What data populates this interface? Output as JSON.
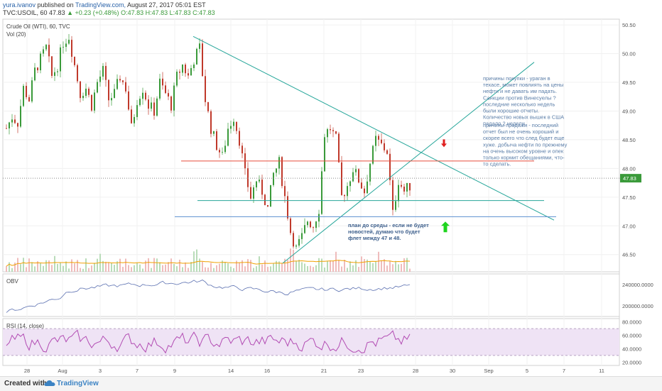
{
  "header": {
    "author": "yura.ivanov",
    "published_text": "published on",
    "site": "TradingView.com,",
    "date": "August 27, 2017 05:01 EST",
    "ticker_line": "TVC:USOIL, 60",
    "last_price": "47.83",
    "change": "▲ +0.23 (+0.48%)",
    "ohlc": "O:47.83 H:47.83 L:47.83 C:47.83"
  },
  "panes": {
    "main_title": "Crude Oil (WTI), 60, TVC",
    "volume_label": "Vol (20)",
    "obv_label": "OBV",
    "rsi_label": "RSI (14, close)"
  },
  "annotations": {
    "buy_reasons": [
      "причины покупки - ураган в",
      "техасе, может  повлиять на цены",
      "нефти и не давать им падать.",
      "Санкции против Винесуелы ?",
      "последние несколько недель",
      "были хорошие отчеты.",
      "Количество новых вышек в США",
      "падало 2 недели."
    ],
    "sell_reasons": [
      "причины продажи - последний",
      "отчет был не очень хороший и",
      "скорее всего что след будет еще",
      "хуже. добыча нефти по прежнему",
      "на очень высоком уровне и опек",
      "только кормит обещаниями, что-",
      "то сделать."
    ],
    "plan": [
      "план до среды - если не будет",
      "новостей, думаю что будет",
      "флет между 47 и 48."
    ]
  },
  "footer": {
    "created_with": "Created with",
    "brand": "TradingView"
  },
  "colors": {
    "up_candle": "#3a9a3a",
    "down_candle": "#c0392b",
    "trendline": "#26a69a",
    "resistance": "#e74c3c",
    "support": "#5b8fd1",
    "obv_line": "#5a6fb0",
    "rsi_line": "#b24bb3",
    "rsi_band": "#efe3f5",
    "volume_ma": "#f0a000",
    "price_label_bg": "#3a9a3a"
  },
  "chart_data": [
    {
      "type": "candlestick",
      "title": "Crude Oil (WTI), 60, TVC",
      "symbol": "TVC:USOIL",
      "interval": "60",
      "last_price": 47.83,
      "ylim": [
        46.2,
        50.6
      ],
      "y_ticks": [
        "50.50",
        "50.00",
        "49.50",
        "49.00",
        "48.50",
        "48.00",
        "47.50",
        "47.00",
        "46.50"
      ],
      "x_ticks": [
        "28",
        "Aug",
        "3",
        "7",
        "9",
        "14",
        "16",
        "21",
        "23",
        "28",
        "30",
        "Sep",
        "5",
        "7",
        "11"
      ],
      "series": [
        {
          "name": "price",
          "x": [
            0,
            8,
            16,
            24,
            32,
            40,
            48,
            56,
            64,
            72,
            80,
            88,
            96,
            104,
            112,
            120,
            128,
            136,
            144,
            152,
            160,
            168,
            176,
            184,
            192,
            200,
            208,
            216,
            224,
            232,
            240,
            248,
            256,
            264,
            272,
            280,
            288,
            296,
            304,
            312,
            320,
            328,
            336,
            344,
            352,
            360,
            368,
            376,
            384,
            392,
            400,
            408,
            416,
            424,
            432,
            440,
            448,
            456,
            464,
            472,
            480,
            488,
            496,
            504,
            512,
            520,
            528,
            536,
            544,
            552,
            560,
            568,
            576
          ],
          "values": [
            48.7,
            48.9,
            48.8,
            49.4,
            49.2,
            49.7,
            49.9,
            50.1,
            49.6,
            49.8,
            50.2,
            50.3,
            49.8,
            49.3,
            49.4,
            49.1,
            49.5,
            49.7,
            49.2,
            49.3,
            49.6,
            49.4,
            48.7,
            49.2,
            49.4,
            49.1,
            49.0,
            49.5,
            49.3,
            49.1,
            49.6,
            49.8,
            49.6,
            49.9,
            50.1,
            49.2,
            48.7,
            48.4,
            48.2,
            48.7,
            48.9,
            48.5,
            47.9,
            47.5,
            47.8,
            47.6,
            47.3,
            47.9,
            48.1,
            47.5,
            46.9,
            46.6,
            46.8,
            47.1,
            47.0,
            47.3,
            48.6,
            48.7,
            48.5,
            47.5,
            47.7,
            48.0,
            47.8,
            47.6,
            48.1,
            48.5,
            48.4,
            48.3,
            47.2,
            47.8,
            47.6,
            47.7,
            47.83
          ]
        }
      ],
      "lines": [
        {
          "name": "descending-trendline",
          "x": [
            272,
            780
          ],
          "y": [
            50.3,
            47.1
          ]
        },
        {
          "name": "ascending-trendline",
          "x": [
            398,
            752
          ],
          "y": [
            46.35,
            49.85
          ]
        },
        {
          "name": "resistance",
          "x": [
            255,
            752
          ],
          "y": [
            48.13,
            48.13
          ]
        },
        {
          "name": "upper-support",
          "x": [
            278,
            766
          ],
          "y": [
            47.44,
            47.44
          ]
        },
        {
          "name": "lower-support",
          "x": [
            246,
            783
          ],
          "y": [
            47.16,
            47.16
          ]
        }
      ],
      "markers": [
        {
          "name": "sell-arrow",
          "x": 625,
          "y": 48.42,
          "direction": "down"
        },
        {
          "name": "buy-arrow",
          "x": 627,
          "y": 47.0,
          "direction": "up"
        }
      ]
    },
    {
      "type": "line",
      "title": "OBV",
      "y_ticks": [
        "240000.0000",
        "200000.0000"
      ],
      "ylim": [
        180000,
        260000
      ]
    },
    {
      "type": "line",
      "title": "RSI (14, close)",
      "y_ticks": [
        "80.0000",
        "60.0000",
        "40.0000",
        "20.0000"
      ],
      "ylim": [
        15,
        85
      ],
      "band": [
        30,
        70
      ]
    }
  ]
}
